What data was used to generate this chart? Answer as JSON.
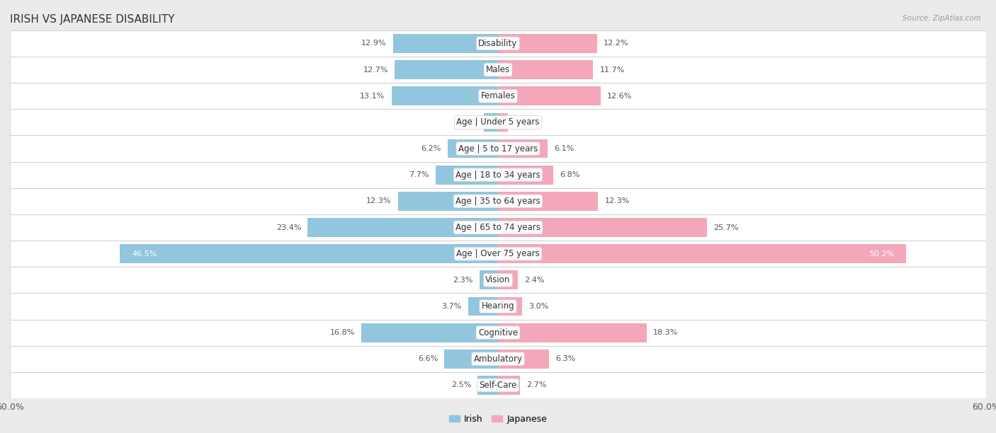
{
  "title": "IRISH VS JAPANESE DISABILITY",
  "source": "Source: ZipAtlas.com",
  "categories": [
    "Disability",
    "Males",
    "Females",
    "Age | Under 5 years",
    "Age | 5 to 17 years",
    "Age | 18 to 34 years",
    "Age | 35 to 64 years",
    "Age | 65 to 74 years",
    "Age | Over 75 years",
    "Vision",
    "Hearing",
    "Cognitive",
    "Ambulatory",
    "Self-Care"
  ],
  "irish_values": [
    12.9,
    12.7,
    13.1,
    1.7,
    6.2,
    7.7,
    12.3,
    23.4,
    46.5,
    2.3,
    3.7,
    16.8,
    6.6,
    2.5
  ],
  "japanese_values": [
    12.2,
    11.7,
    12.6,
    1.2,
    6.1,
    6.8,
    12.3,
    25.7,
    50.2,
    2.4,
    3.0,
    18.3,
    6.3,
    2.7
  ],
  "irish_color": "#92C5DE",
  "japanese_color": "#F4A7B9",
  "irish_label": "Irish",
  "japanese_label": "Japanese",
  "xlim": 60.0,
  "row_bg_color": "#ffffff",
  "outer_bg_color": "#ebebeb",
  "row_border_color": "#cccccc",
  "bar_height": 0.72,
  "title_fontsize": 11,
  "axis_fontsize": 9,
  "value_fontsize": 8,
  "category_fontsize": 8.5,
  "value_color": "#555555",
  "category_color": "#333333",
  "title_color": "#333333",
  "source_color": "#999999"
}
